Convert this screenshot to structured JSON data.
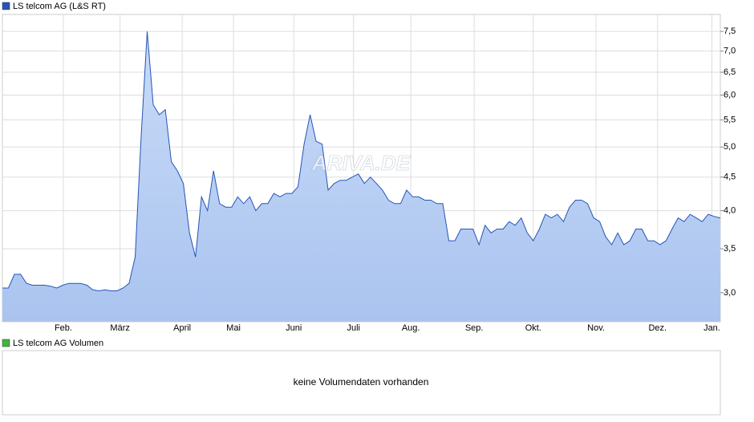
{
  "chart_data": {
    "type": "area",
    "series": [
      {
        "name": "LS telcom AG (L&S RT)",
        "color": "#2455b8",
        "fill_top": "#c9dbf7",
        "fill_bottom": "#aac4f0",
        "values": [
          3.05,
          3.05,
          3.2,
          3.2,
          3.1,
          3.08,
          3.08,
          3.08,
          3.07,
          3.05,
          3.08,
          3.1,
          3.1,
          3.1,
          3.08,
          3.03,
          3.02,
          3.03,
          3.02,
          3.02,
          3.05,
          3.1,
          3.4,
          5.2,
          7.5,
          5.8,
          5.6,
          5.7,
          4.75,
          4.6,
          4.4,
          3.7,
          3.4,
          4.2,
          4.0,
          4.6,
          4.1,
          4.05,
          4.05,
          4.2,
          4.1,
          4.2,
          4.0,
          4.1,
          4.1,
          4.25,
          4.2,
          4.25,
          4.25,
          4.35,
          5.05,
          5.6,
          5.1,
          5.05,
          4.3,
          4.4,
          4.45,
          4.45,
          4.5,
          4.55,
          4.4,
          4.5,
          4.4,
          4.3,
          4.15,
          4.1,
          4.1,
          4.3,
          4.2,
          4.2,
          4.15,
          4.15,
          4.1,
          4.1,
          3.6,
          3.6,
          3.75,
          3.75,
          3.75,
          3.55,
          3.8,
          3.7,
          3.75,
          3.75,
          3.85,
          3.8,
          3.9,
          3.7,
          3.6,
          3.75,
          3.95,
          3.9,
          3.95,
          3.85,
          4.05,
          4.15,
          4.15,
          4.1,
          3.9,
          3.85,
          3.65,
          3.55,
          3.7,
          3.55,
          3.6,
          3.75,
          3.75,
          3.6,
          3.6,
          3.55,
          3.6,
          3.75,
          3.9,
          3.85,
          3.95,
          3.9,
          3.85,
          3.95,
          3.92,
          3.9
        ]
      }
    ],
    "xlim": [
      0,
      119
    ],
    "xticks": [
      {
        "value": 10.1,
        "label": "Feb."
      },
      {
        "value": 19.5,
        "label": "März"
      },
      {
        "value": 29.8,
        "label": "April"
      },
      {
        "value": 38.3,
        "label": "Mai"
      },
      {
        "value": 48.3,
        "label": "Juni"
      },
      {
        "value": 58.2,
        "label": "Juli"
      },
      {
        "value": 67.7,
        "label": "Aug."
      },
      {
        "value": 78.2,
        "label": "Sep."
      },
      {
        "value": 88.0,
        "label": "Okt."
      },
      {
        "value": 98.4,
        "label": "Nov."
      },
      {
        "value": 108.6,
        "label": "Dez."
      },
      {
        "value": 117.6,
        "label": "Jan."
      }
    ],
    "ylim": [
      2.71,
      7.96
    ],
    "log_scale": true,
    "grid": true,
    "yticks": [
      {
        "value": 3.0,
        "label": "3,0"
      },
      {
        "value": 3.5,
        "label": "3,5"
      },
      {
        "value": 4.0,
        "label": "4,0"
      },
      {
        "value": 4.5,
        "label": "4,5"
      },
      {
        "value": 5.0,
        "label": "5,0"
      },
      {
        "value": 5.5,
        "label": "5,5"
      },
      {
        "value": 6.0,
        "label": "6,0"
      },
      {
        "value": 6.5,
        "label": "6,5"
      },
      {
        "value": 7.0,
        "label": "7,0"
      },
      {
        "value": 7.5,
        "label": "7,5"
      }
    ],
    "watermark": "ARIVA.DE"
  },
  "volume_panel": {
    "legend": "LS telcom AG Volumen",
    "color": "#3cb83c",
    "message": "keine Volumendaten vorhanden"
  }
}
